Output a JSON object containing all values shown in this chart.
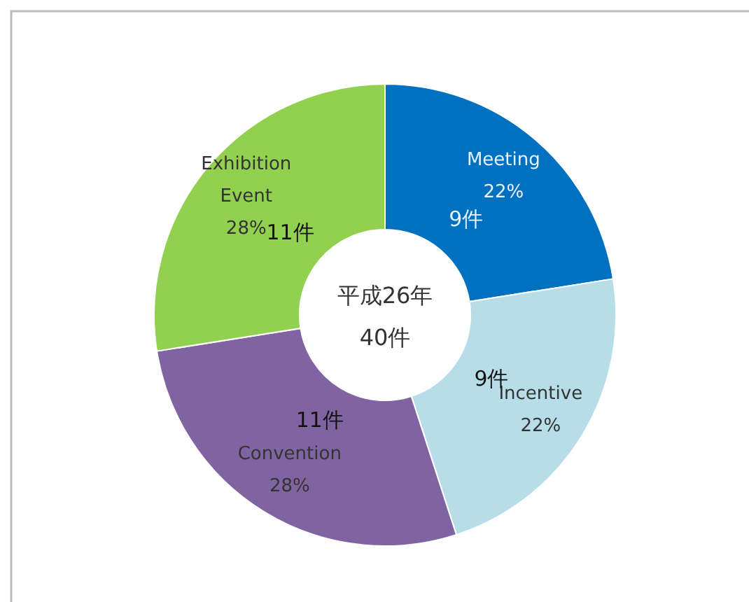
{
  "chart_data": {
    "type": "donut",
    "title": "平成26年",
    "subtitle": "40件",
    "categories": [
      "Meeting",
      "Incentive",
      "Convention",
      "Exhibition Event"
    ],
    "values": [
      9,
      9,
      11,
      11
    ],
    "value_labels": [
      "9件",
      "9件",
      "11件",
      "11件"
    ],
    "annotations": [
      "22%",
      "22%",
      "28%",
      "28%"
    ],
    "colors": [
      "#0070c0",
      "#b7dde8",
      "#8064a2",
      "#92d050"
    ]
  }
}
